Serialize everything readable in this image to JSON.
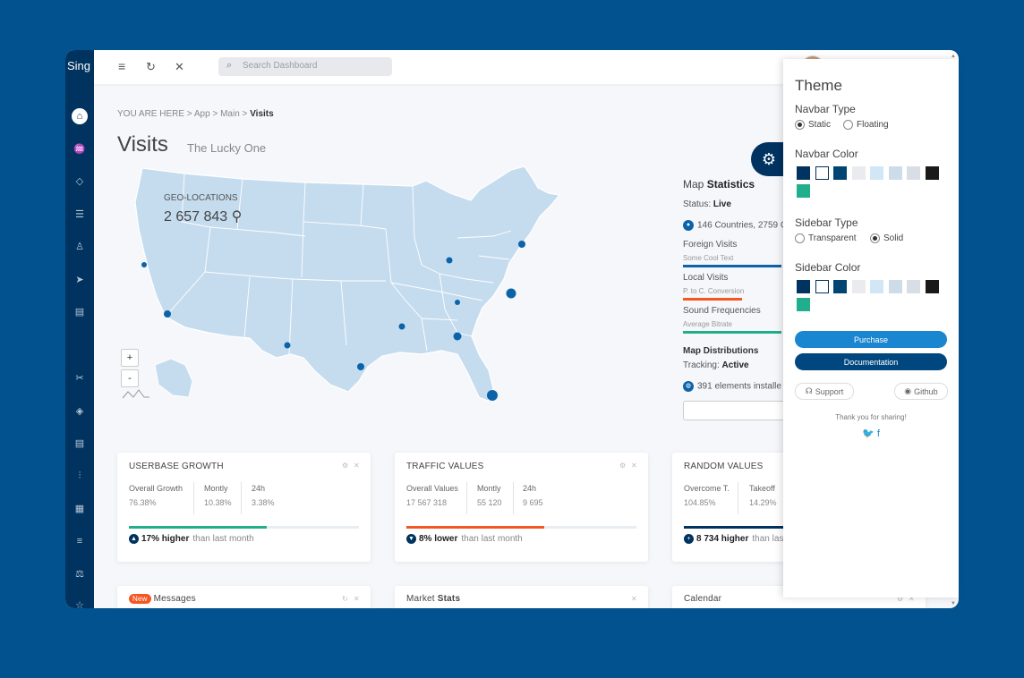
{
  "brand": "Sing",
  "search": {
    "placeholder": "Search Dashboard"
  },
  "breadcrumb": {
    "prefix": "YOU ARE HERE",
    "items": [
      "App",
      "Main"
    ],
    "current": "Visits"
  },
  "page": {
    "title": "Visits",
    "subtitle": "The Lucky One"
  },
  "map": {
    "geo_label": "GEO-LOCATIONS",
    "geo_value": "2 657 843",
    "zoom_in": "+",
    "zoom_out": "-",
    "markers": [
      {
        "name": "San Francisco"
      },
      {
        "name": "Los Angeles"
      },
      {
        "name": "Albuquerque"
      },
      {
        "name": "Houston"
      },
      {
        "name": "Jackson"
      },
      {
        "name": "Atlanta"
      },
      {
        "name": "Miami"
      },
      {
        "name": "Nashville"
      },
      {
        "name": "Columbus"
      },
      {
        "name": "Charlotte"
      },
      {
        "name": "New York"
      }
    ]
  },
  "stats": {
    "title_prefix": "Map",
    "title_bold": "Statistics",
    "status_label": "Status:",
    "status_value": "Live",
    "countries": "146 Countries, 2759 C",
    "rows": [
      {
        "label": "Foreign Visits",
        "sub": "Some Cool Text",
        "color": "#0c63a8",
        "value": 1.0
      },
      {
        "label": "Local Visits",
        "sub": "P. to C. Conversion",
        "color": "#f45722",
        "value": 0.6
      },
      {
        "label": "Sound Frequencies",
        "sub": "Average Bitrate",
        "color": "#21ae8c",
        "value": 1.0
      }
    ],
    "dist_title": "Map Distributions",
    "tracking_label": "Tracking:",
    "tracking_value": "Active",
    "elements": "391 elements installe"
  },
  "cards": [
    {
      "title": "USERBASE GROWTH",
      "metrics": [
        {
          "label": "Overall Growth",
          "value": "76.38%"
        },
        {
          "label": "Montly",
          "value": "10.38%"
        },
        {
          "label": "24h",
          "value": "3.38%"
        }
      ],
      "progress": 0.6,
      "color": "#21ae8c",
      "trend_icon": "▲",
      "trend_bold": "17% higher",
      "trend_text": "than last month"
    },
    {
      "title": "TRAFFIC VALUES",
      "metrics": [
        {
          "label": "Overall Values",
          "value": "17 567 318"
        },
        {
          "label": "Montly",
          "value": "55 120"
        },
        {
          "label": "24h",
          "value": "9 695"
        }
      ],
      "progress": 0.6,
      "color": "#f45722",
      "trend_icon": "▼",
      "trend_bold": "8% lower",
      "trend_text": "than last month"
    },
    {
      "title": "RANDOM VALUES",
      "metrics": [
        {
          "label": "Overcome T.",
          "value": "104.85%"
        },
        {
          "label": "Takeoff",
          "value": "14.29%"
        }
      ],
      "progress": 1.0,
      "color": "#00335f",
      "trend_icon": "+",
      "trend_bold": "8 734 higher",
      "trend_text": "than las"
    }
  ],
  "bottom_cards": [
    {
      "badge": "New",
      "title": "Messages"
    },
    {
      "title_plain": "Market",
      "title_bold": "Stats"
    },
    {
      "title": "Calendar"
    }
  ],
  "theme": {
    "title": "Theme",
    "navbar_type": {
      "label": "Navbar Type",
      "options": [
        "Static",
        "Floating"
      ],
      "selected": "Static"
    },
    "navbar_color": {
      "label": "Navbar Color"
    },
    "sidebar_type": {
      "label": "Sidebar Type",
      "options": [
        "Transparent",
        "Solid"
      ],
      "selected": "Solid"
    },
    "sidebar_color": {
      "label": "Sidebar Color"
    },
    "swatches": [
      "#00335f",
      "#ffffff",
      "#004472",
      "#e9ebef",
      "#d1e7f6",
      "#ccdde9",
      "#d8dde6",
      "#1a1a1a",
      "#21ae8c"
    ],
    "purchase": "Purchase",
    "documentation": "Documentation",
    "support": "Support",
    "github": "Github",
    "thanks": "Thank you for sharing!"
  },
  "colors": {
    "brand_dark": "#00335f",
    "accent_blue": "#0c63a8",
    "background": "#02528f"
  }
}
